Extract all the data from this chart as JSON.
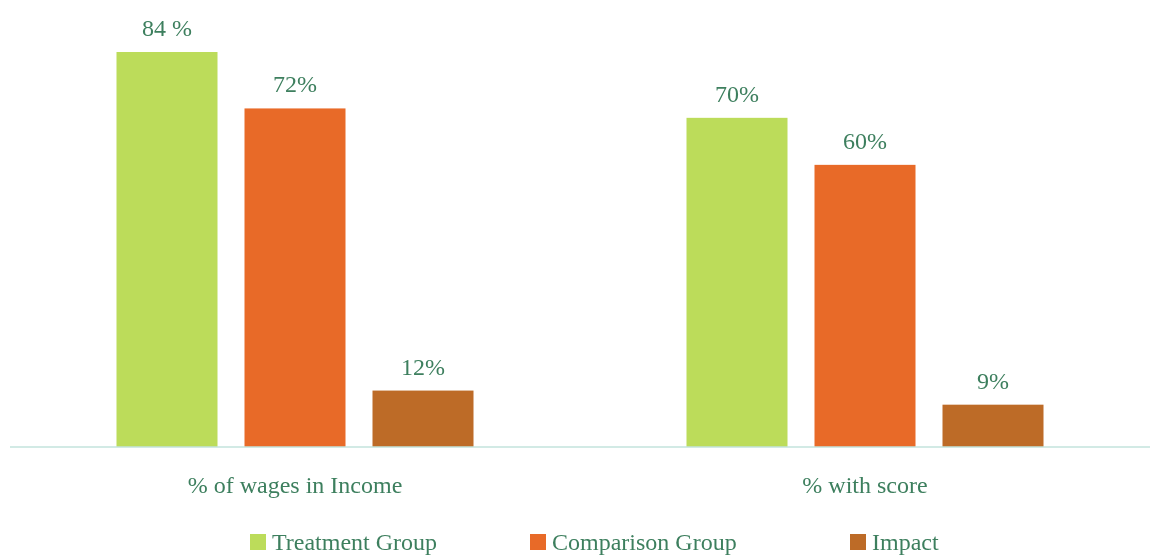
{
  "chart_data": {
    "type": "bar",
    "categories": [
      "% of wages in Income",
      "% with score"
    ],
    "series": [
      {
        "name": "Treatment Group",
        "color": "#bcdc5a",
        "values": [
          84,
          70
        ],
        "value_labels": [
          "84 %",
          "70%"
        ]
      },
      {
        "name": "Comparison Group",
        "color": "#e86a28",
        "values": [
          72,
          60
        ],
        "value_labels": [
          "72%",
          "60%"
        ]
      },
      {
        "name": "Impact",
        "color": "#bd6b27",
        "values": [
          12,
          9
        ],
        "value_labels": [
          "12%",
          "9%"
        ]
      }
    ],
    "legend": "bottom"
  }
}
